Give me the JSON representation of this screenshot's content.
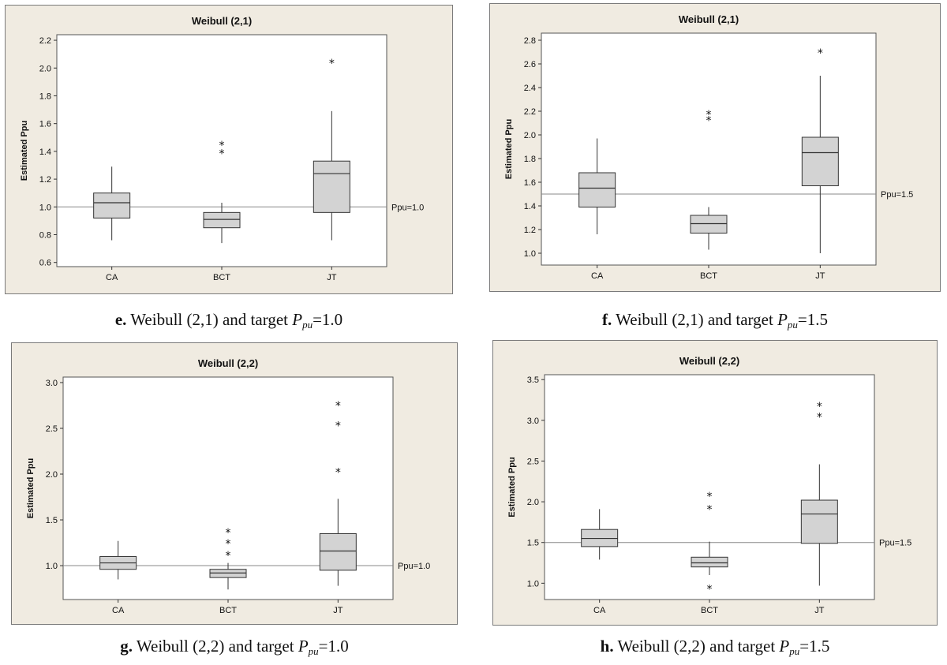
{
  "chart_data": [
    {
      "id": "e",
      "type": "boxplot",
      "title": "Weibull (2,1)",
      "ylabel": "Estimated Ppu",
      "categories": [
        "CA",
        "BCT",
        "JT"
      ],
      "ylim": [
        0.57,
        2.24
      ],
      "yticks": [
        0.6,
        0.8,
        1.0,
        1.2,
        1.4,
        1.6,
        1.8,
        2.0,
        2.2
      ],
      "ytick_labels": [
        "0.6",
        "0.8",
        "1.0",
        "1.2",
        "1.4",
        "1.6",
        "1.8",
        "2.0",
        "2.2"
      ],
      "reference": {
        "value": 1.0,
        "label": "Ppu=1.0"
      },
      "boxes": [
        {
          "category": "CA",
          "min": 0.76,
          "q1": 0.92,
          "median": 1.03,
          "q3": 1.1,
          "max": 1.29,
          "outliers": []
        },
        {
          "category": "BCT",
          "min": 0.74,
          "q1": 0.85,
          "median": 0.91,
          "q3": 0.96,
          "max": 1.03,
          "outliers": [
            1.39,
            1.45
          ]
        },
        {
          "category": "JT",
          "min": 0.76,
          "q1": 0.96,
          "median": 1.24,
          "q3": 1.33,
          "max": 1.69,
          "outliers": [
            2.04
          ]
        }
      ],
      "caption": {
        "letter": "e.",
        "text": " Weibull (2,1) and target ",
        "p": "P",
        "sub": "pu",
        "target": "=1.0"
      }
    },
    {
      "id": "f",
      "type": "boxplot",
      "title": "Weibull (2,1)",
      "ylabel": "Estimated Ppu",
      "categories": [
        "CA",
        "BCT",
        "JT"
      ],
      "ylim": [
        0.9,
        2.86
      ],
      "yticks": [
        1.0,
        1.2,
        1.4,
        1.6,
        1.8,
        2.0,
        2.2,
        2.4,
        2.6,
        2.8
      ],
      "ytick_labels": [
        "1.0",
        "1.2",
        "1.4",
        "1.6",
        "1.8",
        "2.0",
        "2.2",
        "2.4",
        "2.6",
        "2.8"
      ],
      "reference": {
        "value": 1.5,
        "label": "Ppu=1.5"
      },
      "boxes": [
        {
          "category": "CA",
          "min": 1.16,
          "q1": 1.39,
          "median": 1.55,
          "q3": 1.68,
          "max": 1.97,
          "outliers": []
        },
        {
          "category": "BCT",
          "min": 1.03,
          "q1": 1.17,
          "median": 1.25,
          "q3": 1.32,
          "max": 1.39,
          "outliers": [
            2.13,
            2.18
          ]
        },
        {
          "category": "JT",
          "min": 1.0,
          "q1": 1.57,
          "median": 1.85,
          "q3": 1.98,
          "max": 2.5,
          "outliers": [
            2.7
          ]
        }
      ],
      "caption": {
        "letter": "f.",
        "text": " Weibull (2,1) and target ",
        "p": "P",
        "sub": "pu",
        "target": "=1.5"
      }
    },
    {
      "id": "g",
      "type": "boxplot",
      "title": "Weibull (2,2)",
      "ylabel": "Estimated Ppu",
      "categories": [
        "CA",
        "BCT",
        "JT"
      ],
      "ylim": [
        0.63,
        3.06
      ],
      "yticks": [
        1.0,
        1.5,
        2.0,
        2.5,
        3.0
      ],
      "ytick_labels": [
        "1.0",
        "1.5",
        "2.0",
        "2.5",
        "3.0"
      ],
      "reference": {
        "value": 1.0,
        "label": "Ppu=1.0"
      },
      "boxes": [
        {
          "category": "CA",
          "min": 0.85,
          "q1": 0.96,
          "median": 1.03,
          "q3": 1.1,
          "max": 1.27,
          "outliers": []
        },
        {
          "category": "BCT",
          "min": 0.74,
          "q1": 0.87,
          "median": 0.92,
          "q3": 0.96,
          "max": 1.03,
          "outliers": [
            1.12,
            1.25,
            1.37
          ]
        },
        {
          "category": "JT",
          "min": 0.78,
          "q1": 0.95,
          "median": 1.16,
          "q3": 1.35,
          "max": 1.73,
          "outliers": [
            2.03,
            2.54,
            2.76
          ]
        }
      ],
      "caption": {
        "letter": "g.",
        "text": " Weibull (2,2) and target ",
        "p": "P",
        "sub": "pu",
        "target": "=1.0"
      }
    },
    {
      "id": "h",
      "type": "boxplot",
      "title": "Weibull (2,2)",
      "ylabel": "Estimated Ppu",
      "categories": [
        "CA",
        "BCT",
        "JT"
      ],
      "ylim": [
        0.8,
        3.56
      ],
      "yticks": [
        1.0,
        1.5,
        2.0,
        2.5,
        3.0,
        3.5
      ],
      "ytick_labels": [
        "1.0",
        "1.5",
        "2.0",
        "2.5",
        "3.0",
        "3.5"
      ],
      "reference": {
        "value": 1.5,
        "label": "Ppu=1.5"
      },
      "boxes": [
        {
          "category": "CA",
          "min": 1.29,
          "q1": 1.45,
          "median": 1.55,
          "q3": 1.66,
          "max": 1.91,
          "outliers": []
        },
        {
          "category": "BCT",
          "min": 1.1,
          "q1": 1.2,
          "median": 1.25,
          "q3": 1.32,
          "max": 1.51,
          "outliers": [
            0.94,
            1.92,
            2.08
          ]
        },
        {
          "category": "JT",
          "min": 0.97,
          "q1": 1.49,
          "median": 1.85,
          "q3": 2.02,
          "max": 2.46,
          "outliers": [
            3.05,
            3.18
          ]
        }
      ],
      "caption": {
        "letter": "h.",
        "text": " Weibull (2,2) and target ",
        "p": "P",
        "sub": "pu",
        "target": "=1.5"
      }
    }
  ]
}
